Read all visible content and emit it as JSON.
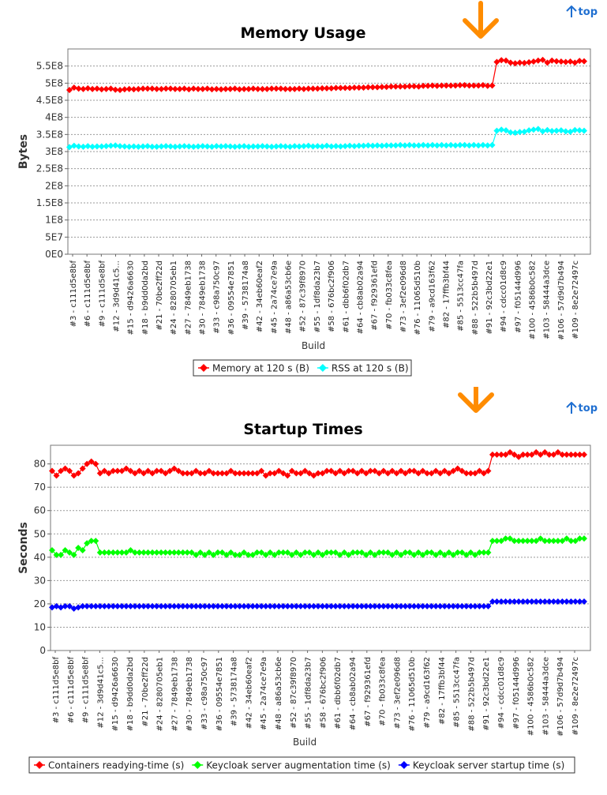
{
  "links": {
    "top_label": "top"
  },
  "chart_data": [
    {
      "type": "line",
      "title": "Memory Usage",
      "xlabel": "Build",
      "ylabel": "Bytes",
      "ylim": [
        0,
        600000000
      ],
      "yticks": [
        "0E0",
        "5E7",
        "1E8",
        "1.5E8",
        "2E8",
        "2.5E8",
        "3E8",
        "3.5E8",
        "4E8",
        "4.5E8",
        "5E8",
        "5.5E8"
      ],
      "x_tick_labels": [
        "#3 - c111d5e8bf",
        "#6 - c111d5e8bf",
        "#9 - c111d5e8bf",
        "#12 - 3d9d41c5...",
        "#15 - d9426a6630",
        "#18 - b9dd0da2bd",
        "#21 - 70be2ff22d",
        "#24 - 8280705eb1",
        "#27 - 7849eb1738",
        "#30 - 7849eb1738",
        "#33 - c98a750c97",
        "#36 - 09554e7851",
        "#39 - 5738174a8",
        "#42 - 34eb60eaf2",
        "#45 - 2a74ce7e9a",
        "#48 - a86a53cb6e",
        "#52 - 87c39f8970",
        "#55 - 1df8da23b7",
        "#58 - 676bc2f906",
        "#61 - dbb6f02db7",
        "#64 - cb8ab02a94",
        "#67 - f929361efd",
        "#70 - fb033c8fea",
        "#73 - 3ef2e096d8",
        "#76 - 11065d510b",
        "#79 - a9cd163f62",
        "#82 - 17ffb3bf44",
        "#85 - 5513cc47fa",
        "#88 - 522b5b497d",
        "#91 - 92c3bd22e1",
        "#94 - cdcc01d8c9",
        "#97 - f05144d996",
        "#100 - 4586b0c582",
        "#103 - 58444a3dce",
        "#106 - 57d9d7b494",
        "#109 - 8e2e72497c"
      ],
      "grid": true,
      "legend_position": "bottom-center",
      "series": [
        {
          "name": "Memory at 120 s (B)",
          "color": "#ff0000",
          "values": [
            480000000,
            487000000,
            484000000,
            483000000,
            485000000,
            483000000,
            484000000,
            482000000,
            483000000,
            484000000,
            481000000,
            480000000,
            482000000,
            483000000,
            482000000,
            483000000,
            484000000,
            484000000,
            484000000,
            483000000,
            483000000,
            484000000,
            484000000,
            483000000,
            483000000,
            484000000,
            482000000,
            484000000,
            483000000,
            483000000,
            484000000,
            482000000,
            483000000,
            482000000,
            483000000,
            483000000,
            484000000,
            482000000,
            483000000,
            483000000,
            484000000,
            483000000,
            483000000,
            483000000,
            484000000,
            484000000,
            484000000,
            483000000,
            483000000,
            483000000,
            484000000,
            483000000,
            484000000,
            484000000,
            484000000,
            485000000,
            485000000,
            485000000,
            486000000,
            486000000,
            486000000,
            486000000,
            487000000,
            487000000,
            487000000,
            488000000,
            488000000,
            488000000,
            489000000,
            489000000,
            490000000,
            490000000,
            490000000,
            490000000,
            491000000,
            491000000,
            490000000,
            492000000,
            492000000,
            493000000,
            492000000,
            493000000,
            493000000,
            493000000,
            493000000,
            494000000,
            494000000,
            493000000,
            493000000,
            493000000,
            494000000,
            492000000,
            493000000,
            562000000,
            567000000,
            566000000,
            560000000,
            558000000,
            560000000,
            559000000,
            561000000,
            563000000,
            566000000,
            568000000,
            560000000,
            566000000,
            564000000,
            563000000,
            562000000,
            563000000,
            560000000,
            565000000,
            564000000
          ]
        },
        {
          "name": "RSS at 120 s (B)",
          "color": "#00ffff",
          "values": [
            313000000,
            317000000,
            315000000,
            314000000,
            316000000,
            314000000,
            315000000,
            315000000,
            316000000,
            317000000,
            318000000,
            316000000,
            315000000,
            314000000,
            315000000,
            314000000,
            315000000,
            316000000,
            314000000,
            314000000,
            315000000,
            316000000,
            315000000,
            314000000,
            315000000,
            316000000,
            315000000,
            314000000,
            315000000,
            316000000,
            315000000,
            314000000,
            316000000,
            315000000,
            316000000,
            315000000,
            314000000,
            315000000,
            316000000,
            314000000,
            315000000,
            315000000,
            316000000,
            315000000,
            314000000,
            315000000,
            316000000,
            315000000,
            314000000,
            316000000,
            315000000,
            316000000,
            317000000,
            315000000,
            316000000,
            315000000,
            317000000,
            315000000,
            316000000,
            315000000,
            316000000,
            317000000,
            316000000,
            317000000,
            317000000,
            318000000,
            317000000,
            318000000,
            317000000,
            318000000,
            318000000,
            318000000,
            319000000,
            318000000,
            319000000,
            318000000,
            318000000,
            319000000,
            318000000,
            319000000,
            318000000,
            319000000,
            318000000,
            319000000,
            318000000,
            319000000,
            319000000,
            318000000,
            319000000,
            318000000,
            319000000,
            318000000,
            319000000,
            361000000,
            364000000,
            362000000,
            356000000,
            355000000,
            357000000,
            358000000,
            362000000,
            364000000,
            366000000,
            359000000,
            363000000,
            360000000,
            361000000,
            362000000,
            359000000,
            358000000,
            363000000,
            362000000,
            361000000
          ]
        }
      ]
    },
    {
      "type": "line",
      "title": "Startup Times",
      "xlabel": "Build",
      "ylabel": "Seconds",
      "ylim": [
        0,
        88
      ],
      "yticks": [
        "0",
        "10",
        "20",
        "30",
        "40",
        "50",
        "60",
        "70",
        "80"
      ],
      "x_tick_labels": [
        "#3 - c111d5e8bf",
        "#6 - c111d5e8bf",
        "#9 - c111d5e8bf",
        "#12 - 3d9d41c5...",
        "#15 - d9426a6630",
        "#18 - b9dd0da2bd",
        "#21 - 70be2ff22d",
        "#24 - 8280705eb1",
        "#27 - 7849eb1738",
        "#30 - 7849eb1738",
        "#33 - c98a750c97",
        "#36 - 09554e7851",
        "#39 - 5738174a8",
        "#42 - 34eb60eaf2",
        "#45 - 2a74ce7e9a",
        "#48 - a86a53cb6e",
        "#52 - 87c39f8970",
        "#55 - 1df8da23b7",
        "#58 - 676bc2f906",
        "#61 - dbb6f02db7",
        "#64 - cb8ab02a94",
        "#67 - f929361efd",
        "#70 - fb033c8fea",
        "#73 - 3ef2e096d8",
        "#76 - 11065d510b",
        "#79 - a9cd163f62",
        "#82 - 17ffb3bf44",
        "#85 - 5513cc47fa",
        "#88 - 522b5b497d",
        "#91 - 92c3bd22e1",
        "#94 - cdcc01d8c9",
        "#97 - f05144d996",
        "#100 - 4586b0c582",
        "#103 - 58444a3dce",
        "#106 - 57d9d7b494",
        "#109 - 8e2e72497c"
      ],
      "grid": true,
      "legend_position": "bottom-center",
      "series": [
        {
          "name": "Containers readying-time (s)",
          "color": "#ff0000",
          "values": [
            77,
            75,
            77,
            78,
            77,
            75,
            76,
            78,
            80,
            81,
            80,
            76,
            77,
            76,
            77,
            77,
            77,
            78,
            77,
            76,
            77,
            76,
            77,
            76,
            77,
            77,
            76,
            77,
            78,
            77,
            76,
            76,
            76,
            77,
            76,
            76,
            77,
            76,
            76,
            76,
            76,
            77,
            76,
            76,
            76,
            76,
            76,
            76,
            77,
            75,
            76,
            76,
            77,
            76,
            75,
            77,
            76,
            76,
            77,
            76,
            75,
            76,
            76,
            77,
            77,
            76,
            77,
            76,
            77,
            77,
            76,
            77,
            76,
            77,
            77,
            76,
            77,
            76,
            77,
            76,
            77,
            76,
            77,
            77,
            76,
            77,
            76,
            76,
            77,
            76,
            77,
            76,
            77,
            78,
            77,
            76,
            76,
            76,
            77,
            76,
            77,
            84,
            84,
            84,
            84,
            85,
            84,
            83,
            84,
            84,
            84,
            85,
            84,
            85,
            84,
            84,
            85,
            84,
            84,
            84,
            84,
            84,
            84
          ]
        },
        {
          "name": "Keycloak server augmentation time (s)",
          "color": "#00ff00",
          "values": [
            43,
            41,
            41,
            43,
            42,
            41,
            44,
            43,
            46,
            47,
            47,
            42,
            42,
            42,
            42,
            42,
            42,
            42,
            43,
            42,
            42,
            42,
            42,
            42,
            42,
            42,
            42,
            42,
            42,
            42,
            42,
            42,
            42,
            41,
            42,
            41,
            42,
            41,
            42,
            42,
            41,
            42,
            41,
            41,
            42,
            41,
            41,
            42,
            42,
            41,
            42,
            41,
            42,
            42,
            42,
            41,
            42,
            41,
            42,
            42,
            41,
            42,
            41,
            42,
            42,
            42,
            41,
            42,
            41,
            42,
            42,
            42,
            41,
            42,
            41,
            42,
            42,
            42,
            41,
            42,
            41,
            42,
            42,
            41,
            42,
            41,
            42,
            42,
            41,
            42,
            41,
            42,
            41,
            42,
            42,
            41,
            42,
            41,
            42,
            42,
            42,
            47,
            47,
            47,
            48,
            48,
            47,
            47,
            47,
            47,
            47,
            47,
            48,
            47,
            47,
            47,
            47,
            47,
            48,
            47,
            47,
            48,
            48
          ]
        },
        {
          "name": "Keycloak server startup time (s)",
          "color": "#0000ff",
          "values": [
            18.5,
            19,
            18.5,
            19,
            19,
            18,
            18.5,
            19,
            19,
            19,
            19,
            19,
            19,
            19,
            19,
            19,
            19,
            19,
            19,
            19,
            19,
            19,
            19,
            19,
            19,
            19,
            19,
            19,
            19,
            19,
            19,
            19,
            19,
            19,
            19,
            19,
            19,
            19,
            19,
            19,
            19,
            19,
            19,
            19,
            19,
            19,
            19,
            19,
            19,
            19,
            19,
            19,
            19,
            19,
            19,
            19,
            19,
            19,
            19,
            19,
            19,
            19,
            19,
            19,
            19,
            19,
            19,
            19,
            19,
            19,
            19,
            19,
            19,
            19,
            19,
            19,
            19,
            19,
            19,
            19,
            19,
            19,
            19,
            19,
            19,
            19,
            19,
            19,
            19,
            19,
            19,
            19,
            19,
            19,
            19,
            19,
            19,
            19,
            19,
            19,
            19,
            21,
            21,
            21,
            21,
            21,
            21,
            21,
            21,
            21,
            21,
            21,
            21,
            21,
            21,
            21,
            21,
            21,
            21,
            21,
            21,
            21,
            21
          ]
        }
      ]
    }
  ]
}
